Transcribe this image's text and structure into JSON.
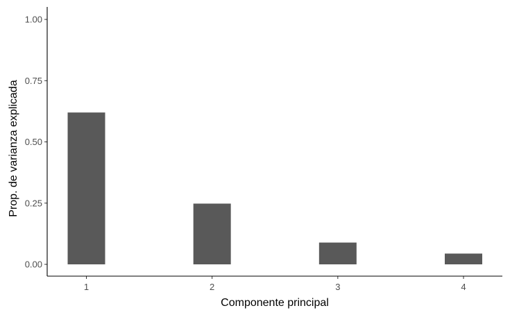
{
  "chart_data": {
    "type": "bar",
    "title": "",
    "xlabel": "Componente principal",
    "ylabel": "Prop. de varianza explicada",
    "categories": [
      "1",
      "2",
      "3",
      "4"
    ],
    "values": [
      0.62,
      0.248,
      0.089,
      0.044
    ],
    "ylim": [
      0,
      1
    ],
    "yticks": [
      "0.00",
      "0.25",
      "0.50",
      "0.75",
      "1.00"
    ],
    "bar_color": "#595959",
    "axis_color": "#000000",
    "grid": false,
    "legend": "none"
  }
}
